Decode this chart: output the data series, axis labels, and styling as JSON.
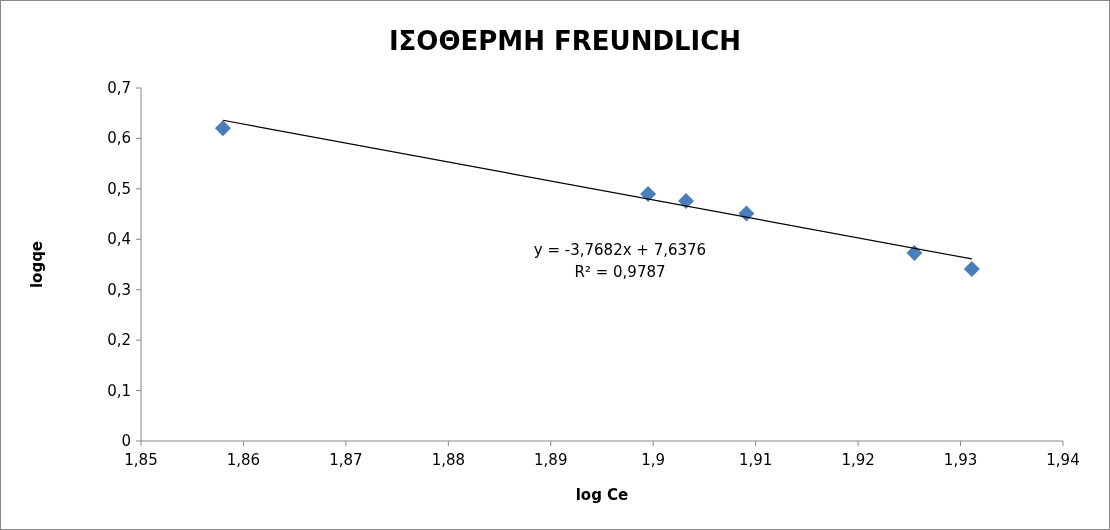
{
  "chart_data": {
    "type": "scatter",
    "title": "ΙΣΟΘΕΡΜΗ FREUNDLICH",
    "xlabel": "log Ce",
    "ylabel": "logqe",
    "annotations": [
      "y = -3,7682x + 7,6376",
      "R² = 0,9787"
    ],
    "grid": false,
    "xlim": [
      1.85,
      1.94
    ],
    "ylim": [
      0,
      0.7
    ],
    "xticks": [
      {
        "value": 1.85,
        "label": "1,85"
      },
      {
        "value": 1.86,
        "label": "1,86"
      },
      {
        "value": 1.87,
        "label": "1,87"
      },
      {
        "value": 1.88,
        "label": "1,88"
      },
      {
        "value": 1.89,
        "label": "1,89"
      },
      {
        "value": 1.9,
        "label": "1,9"
      },
      {
        "value": 1.91,
        "label": "1,91"
      },
      {
        "value": 1.92,
        "label": "1,92"
      },
      {
        "value": 1.93,
        "label": "1,93"
      },
      {
        "value": 1.94,
        "label": "1,94"
      }
    ],
    "yticks": [
      0,
      {
        "value": 0.1,
        "label": "0,1"
      },
      {
        "value": 0.2,
        "label": "0,2"
      },
      {
        "value": 0.3,
        "label": "0,3"
      },
      {
        "value": 0.4,
        "label": "0,4"
      },
      {
        "value": 0.5,
        "label": "0,5"
      },
      {
        "value": 0.6,
        "label": "0,6"
      },
      {
        "value": 0.7,
        "label": "0,7"
      }
    ],
    "series": [
      {
        "color": "#4a7ebb",
        "marker": "diamond",
        "x": [
          1.858,
          1.8995,
          1.9032,
          1.9091,
          1.9255,
          1.9311
        ],
        "values": [
          0.62,
          0.49,
          0.476,
          0.451,
          0.373,
          0.341
        ]
      },
      {
        "type": "line",
        "color": "#000000",
        "line_style": "solid",
        "x": [
          1.858,
          1.9311
        ],
        "values": [
          0.636,
          0.361
        ]
      }
    ]
  }
}
